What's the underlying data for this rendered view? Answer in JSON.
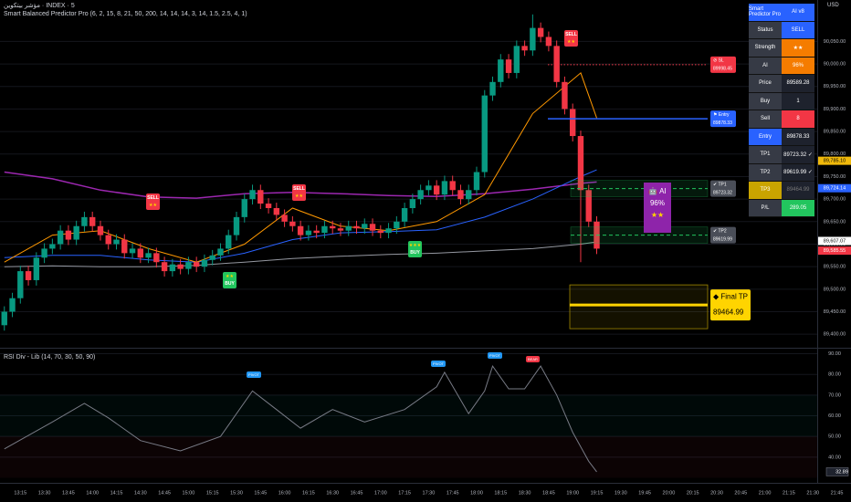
{
  "chart_data": [
    {
      "type": "candlestick",
      "title": "مؤشر بيتكوين · INDEX · 5",
      "subtitle": "Smart Balanced Predictor Pro (6, 2, 15, 8, 21, 50, 200, 14, 14, 14, 3, 14, 1.5, 2.5, 4, 1)",
      "x": [
        "13:05",
        "13:10",
        "13:15",
        "13:20",
        "13:25",
        "13:30",
        "13:35",
        "13:40",
        "13:45",
        "13:50",
        "13:55",
        "14:00",
        "14:05",
        "14:10",
        "14:15",
        "14:20",
        "14:25",
        "14:30",
        "14:35",
        "14:40",
        "14:45",
        "14:50",
        "14:55",
        "15:00",
        "15:05",
        "15:10",
        "15:15",
        "15:20",
        "15:25",
        "15:30",
        "15:35",
        "15:40",
        "15:45",
        "15:50",
        "15:55",
        "16:00",
        "16:05",
        "16:10",
        "16:15",
        "16:20",
        "16:25",
        "16:30",
        "16:35",
        "16:40",
        "16:45",
        "16:50",
        "16:55",
        "17:00",
        "17:05",
        "17:10",
        "17:15",
        "17:20",
        "17:25",
        "17:30",
        "17:35",
        "17:40",
        "17:45",
        "17:50",
        "17:55",
        "18:00",
        "18:05",
        "18:10",
        "18:15",
        "18:20",
        "18:25",
        "18:30",
        "18:35",
        "18:40",
        "18:45",
        "18:50",
        "18:55",
        "19:00",
        "19:05",
        "19:10",
        "19:15"
      ],
      "open": [
        89420,
        89450,
        89480,
        89540,
        89520,
        89570,
        89590,
        89600,
        89630,
        89610,
        89640,
        89660,
        89640,
        89620,
        89600,
        89610,
        89580,
        89590,
        89570,
        89580,
        89560,
        89540,
        89555,
        89545,
        89560,
        89550,
        89565,
        89575,
        89590,
        89620,
        89660,
        89700,
        89720,
        89690,
        89680,
        89665,
        89650,
        89640,
        89620,
        89630,
        89625,
        89640,
        89635,
        89630,
        89640,
        89635,
        89645,
        89630,
        89625,
        89635,
        89650,
        89680,
        89700,
        89720,
        89730,
        89710,
        89740,
        89720,
        89700,
        89720,
        89760,
        89930,
        89960,
        90010,
        89980,
        90040,
        90030,
        90080,
        90060,
        90040,
        89960,
        89900,
        89840,
        89720,
        89650
      ],
      "high": [
        89462,
        89492,
        89552,
        89552,
        89582,
        89602,
        89612,
        89642,
        89642,
        89652,
        89672,
        89672,
        89652,
        89632,
        89622,
        89622,
        89602,
        89602,
        89592,
        89592,
        89572,
        89567,
        89567,
        89572,
        89572,
        89577,
        89587,
        89602,
        89632,
        89672,
        89712,
        89732,
        89732,
        89702,
        89692,
        89677,
        89662,
        89652,
        89642,
        89642,
        89652,
        89652,
        89647,
        89652,
        89652,
        89657,
        89657,
        89642,
        89647,
        89662,
        89692,
        89712,
        89732,
        89742,
        89742,
        89752,
        89752,
        89732,
        89732,
        89772,
        89942,
        89972,
        90022,
        90022,
        90052,
        90052,
        90110,
        90092,
        90072,
        90052,
        89972,
        89912,
        89852,
        89732,
        89662
      ],
      "low": [
        89408,
        89438,
        89468,
        89508,
        89508,
        89558,
        89578,
        89588,
        89598,
        89598,
        89628,
        89628,
        89608,
        89588,
        89588,
        89568,
        89568,
        89558,
        89558,
        89548,
        89528,
        89528,
        89533,
        89533,
        89538,
        89538,
        89553,
        89563,
        89578,
        89608,
        89648,
        89688,
        89678,
        89668,
        89653,
        89638,
        89628,
        89608,
        89608,
        89613,
        89613,
        89623,
        89618,
        89618,
        89623,
        89623,
        89618,
        89613,
        89613,
        89623,
        89638,
        89668,
        89688,
        89708,
        89698,
        89698,
        89708,
        89688,
        89688,
        89708,
        89748,
        89918,
        89948,
        89968,
        89968,
        90018,
        90018,
        90048,
        90028,
        89948,
        89888,
        89828,
        89560,
        89638,
        89578
      ],
      "close": [
        89450,
        89480,
        89540,
        89520,
        89570,
        89590,
        89600,
        89630,
        89610,
        89640,
        89660,
        89640,
        89620,
        89600,
        89610,
        89580,
        89590,
        89570,
        89580,
        89560,
        89540,
        89555,
        89545,
        89560,
        89550,
        89565,
        89575,
        89590,
        89620,
        89660,
        89700,
        89720,
        89690,
        89680,
        89665,
        89650,
        89640,
        89620,
        89630,
        89625,
        89640,
        89635,
        89630,
        89640,
        89635,
        89645,
        89630,
        89625,
        89635,
        89650,
        89680,
        89700,
        89720,
        89730,
        89710,
        89740,
        89720,
        89700,
        89720,
        89760,
        89930,
        89960,
        90010,
        89980,
        90040,
        90030,
        90080,
        90060,
        90040,
        89960,
        89900,
        89840,
        89720,
        89650,
        89590
      ],
      "up_color": "#089981",
      "down_color": "#f23645",
      "ylim": [
        89372,
        90142
      ],
      "yticks": [
        {
          "value": 89400,
          "label": "89,400.00"
        },
        {
          "value": 89450,
          "label": "89,450.00"
        },
        {
          "value": 89500,
          "label": "89,500.00"
        },
        {
          "value": 89550,
          "label": "89,550.00"
        },
        {
          "value": 89600,
          "label": "89,600.00"
        },
        {
          "value": 89650,
          "label": "89,650.00"
        },
        {
          "value": 89700,
          "label": "89,700.00"
        },
        {
          "value": 89750,
          "label": "89,750.00"
        },
        {
          "value": 89800,
          "label": "89,800.00"
        },
        {
          "value": 89850,
          "label": "89,850.00"
        },
        {
          "value": 89900,
          "label": "89,900.00"
        },
        {
          "value": 89950,
          "label": "89,950.00"
        },
        {
          "value": 90000,
          "label": "90,000.00"
        },
        {
          "value": 90050,
          "label": "90,050.00"
        }
      ],
      "xticks": [
        "13:15",
        "13:30",
        "13:45",
        "14:00",
        "14:15",
        "14:30",
        "14:45",
        "15:00",
        "15:15",
        "15:30",
        "15:45",
        "16:00",
        "16:15",
        "16:30",
        "16:45",
        "17:00",
        "17:15",
        "17:30",
        "17:45",
        "18:00",
        "18:15",
        "18:30",
        "18:45",
        "19:00",
        "19:15",
        "19:30",
        "19:45",
        "20:00",
        "20:15",
        "20:30",
        "20:45",
        "21:00",
        "21:15",
        "21:30",
        "21:45"
      ],
      "lines": [
        {
          "color": "#9c27b0",
          "x": [
            "13:05",
            "13:35",
            "14:05",
            "14:35",
            "15:05",
            "15:35",
            "16:05",
            "16:35",
            "17:05",
            "17:35",
            "18:05",
            "18:35",
            "19:05",
            "19:15"
          ],
          "values": [
            89760,
            89745,
            89720,
            89705,
            89702,
            89712,
            89715,
            89712,
            89708,
            89706,
            89712,
            89722,
            89735,
            89738
          ]
        },
        {
          "color": "#9598a1",
          "x": [
            "13:05",
            "13:35",
            "14:05",
            "14:35",
            "15:05",
            "15:35",
            "16:05",
            "16:35",
            "17:05",
            "17:35",
            "18:05",
            "18:35",
            "19:05",
            "19:15"
          ],
          "values": [
            89550,
            89552,
            89550,
            89550,
            89553,
            89560,
            89568,
            89573,
            89577,
            89580,
            89585,
            89590,
            89600,
            89605
          ]
        },
        {
          "color": "#2962ff",
          "x": [
            "13:05",
            "13:35",
            "14:05",
            "14:35",
            "15:05",
            "15:35",
            "16:05",
            "16:35",
            "17:05",
            "17:35",
            "18:05",
            "18:35",
            "19:05",
            "19:15"
          ],
          "values": [
            89570,
            89575,
            89575,
            89565,
            89560,
            89580,
            89610,
            89625,
            89628,
            89632,
            89660,
            89700,
            89750,
            89765
          ]
        },
        {
          "color": "#ff9800",
          "x": [
            "13:05",
            "13:35",
            "14:05",
            "14:35",
            "15:05",
            "15:35",
            "16:05",
            "16:35",
            "17:05",
            "17:35",
            "18:05",
            "18:35",
            "19:05",
            "19:15"
          ],
          "values": [
            89560,
            89620,
            89630,
            89590,
            89560,
            89600,
            89680,
            89640,
            89630,
            89650,
            89710,
            89890,
            89980,
            89880
          ]
        }
      ],
      "levels": [
        {
          "label": "⊘ SL",
          "value": 89998.45,
          "color": "#f23645",
          "style": "dotted"
        },
        {
          "label": "⚑ Entry",
          "value": 89878.33,
          "color": "#2962ff",
          "style": "solid"
        },
        {
          "label": "✔ TP1",
          "value": 89723.32,
          "color": "#22c55e",
          "style": "band"
        },
        {
          "label": "✔ TP2",
          "value": 89619.99,
          "color": "#22c55e",
          "style": "band"
        },
        {
          "label": "◆ Final TP",
          "value": 89464.99,
          "color": "#ffd400",
          "style": "box"
        }
      ],
      "price_tags": [
        {
          "value": 89785.1,
          "label": "89,785.10",
          "color": "#f0b90b"
        },
        {
          "value": 89724.14,
          "label": "89,724.14",
          "color": "#2962ff"
        },
        {
          "value": 89607.07,
          "label": "89,607.07",
          "color": "#ffffff"
        },
        {
          "value": 89585.55,
          "label": "89,585.55",
          "color": "#f23645"
        }
      ]
    },
    {
      "type": "line",
      "title": "RSI Div - Lib (14, 70, 30, 50, 90)",
      "x": [
        "13:05",
        "13:35",
        "13:55",
        "14:10",
        "14:30",
        "14:55",
        "15:20",
        "15:40",
        "15:55",
        "16:10",
        "16:30",
        "16:50",
        "17:15",
        "17:35",
        "17:40",
        "17:55",
        "18:05",
        "18:10",
        "18:20",
        "18:30",
        "18:40",
        "18:50",
        "19:00",
        "19:10",
        "19:15"
      ],
      "values": [
        44,
        57,
        66,
        59,
        48,
        43,
        50,
        72,
        63,
        54,
        63,
        57,
        63,
        74,
        81,
        61,
        72,
        84,
        73,
        73,
        84,
        70,
        52,
        38,
        32.89
      ],
      "color": "#787b86",
      "ylim": [
        28,
        92
      ],
      "yticks": [
        {
          "value": 40,
          "label": "40.00"
        },
        {
          "value": 50,
          "label": "50.00"
        },
        {
          "value": 60,
          "label": "60.00"
        },
        {
          "value": 70,
          "label": "70.00"
        },
        {
          "value": 80,
          "label": "80.00"
        },
        {
          "value": 90,
          "label": "90.00"
        }
      ]
    }
  ],
  "currency": "USD",
  "signals": [
    {
      "label": "SELL",
      "stars": "★★"
    },
    {
      "label": "SELL",
      "stars": "★★"
    },
    {
      "label": "SELL",
      "stars": "★★"
    },
    {
      "label": "BUY",
      "stars": "★★"
    },
    {
      "label": "BUY",
      "stars": "★★★"
    }
  ],
  "pivots": [
    "PIVOT",
    "PIVOT",
    "PIVOT",
    "BEAR"
  ],
  "ai_box": {
    "title": "🤖 AI",
    "confidence": "96%",
    "stars": "★★"
  },
  "panel": {
    "header": [
      "Smart Predictor Pro",
      "AI v8"
    ],
    "rows": [
      [
        "Status",
        "SELL"
      ],
      [
        "Strength",
        "★★"
      ],
      [
        "AI",
        "96%"
      ],
      [
        "Price",
        "89589.28"
      ],
      [
        "Buy",
        "1"
      ],
      [
        "Sell",
        "8"
      ],
      [
        "Entry",
        "89878.33"
      ],
      [
        "TP1",
        "89723.32 ✓"
      ],
      [
        "TP2",
        "89619.99 ✓"
      ],
      [
        "TP3",
        "89464.99"
      ],
      [
        "P/L",
        "289.05"
      ]
    ]
  }
}
